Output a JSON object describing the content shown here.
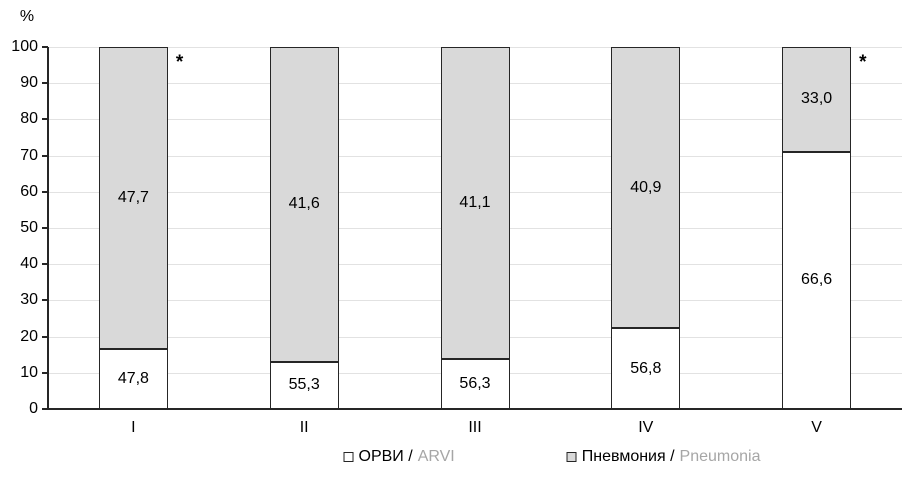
{
  "chart_data": {
    "type": "bar",
    "subtype": "stacked-100pct",
    "title": "",
    "ylabel": "%",
    "ylim": [
      0,
      100
    ],
    "yticks": [
      0,
      10,
      20,
      30,
      40,
      50,
      60,
      70,
      80,
      90,
      100
    ],
    "grid": "horizontal",
    "legend_position": "bottom",
    "categories": [
      "I",
      "II",
      "III",
      "IV",
      "V"
    ],
    "series": [
      {
        "name": "ОРВИ / ARVI",
        "name_primary": "ОРВИ /",
        "name_secondary": "ARVI",
        "fill": "#ffffff",
        "labels": [
          "47,8",
          "55,3",
          "56,3",
          "56,8",
          "66,6"
        ],
        "values": [
          47.8,
          55.3,
          56.3,
          56.8,
          66.6
        ],
        "segment_heights_pct": [
          16.5,
          13.0,
          13.7,
          22.3,
          71.0
        ]
      },
      {
        "name": "Пневмония / Pneumonia",
        "name_primary": "Пневмония /",
        "name_secondary": "Pneumonia",
        "fill": "#d9d9d9",
        "labels": [
          "47,7",
          "41,6",
          "41,1",
          "40,9",
          "33,0"
        ],
        "values": [
          47.7,
          41.6,
          41.1,
          40.9,
          33.0
        ],
        "segment_heights_pct": [
          83.5,
          87.0,
          86.3,
          77.7,
          29.0
        ]
      }
    ],
    "annotations": [
      {
        "text": "*",
        "category": "I"
      },
      {
        "text": "*",
        "category": "V"
      }
    ],
    "colors": {
      "background": "#ffffff",
      "grid": "#e2e2e2",
      "axis": "#262626",
      "bar_border": "#262626",
      "label_text": "#000000",
      "legend_secondary_text": "#a6a6a6"
    }
  }
}
